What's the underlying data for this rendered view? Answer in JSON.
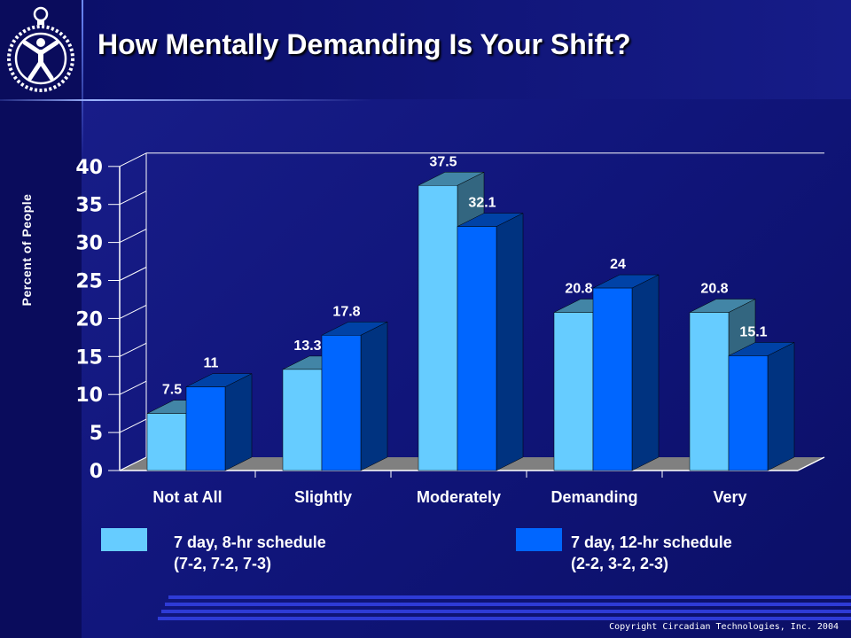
{
  "slide": {
    "title": "How Mentally Demanding Is Your Shift?",
    "copyright": "Copyright Circadian Technologies, Inc. 2004"
  },
  "legend": {
    "series1_line1": "7 day, 8-hr  schedule",
    "series1_line2": "(7-2, 7-2, 7-3)",
    "series2_line1": "7 day, 12-hr schedule",
    "series2_line2": "(2-2, 3-2, 2-3)"
  },
  "colors": {
    "series1": "#66ccff",
    "series2": "#0066ff",
    "floor": "#808080",
    "axis": "#ffffff",
    "text": "#ffffff"
  },
  "chart_data": {
    "type": "bar",
    "title": "How Mentally Demanding Is Your Shift?",
    "ylabel": "Percent of  People",
    "xlabel": "",
    "categories": [
      "Not at All",
      "Slightly",
      "Moderately",
      "Demanding",
      "Very"
    ],
    "series": [
      {
        "name": "7 day, 8-hr  schedule (7-2, 7-2, 7-3)",
        "values": [
          7.5,
          13.3,
          37.5,
          20.8,
          20.8
        ]
      },
      {
        "name": "7 day, 12-hr schedule (2-2, 3-2, 2-3)",
        "values": [
          11,
          17.8,
          32.1,
          24,
          15.1
        ]
      }
    ],
    "value_labels": [
      [
        "7.5",
        "13.3",
        "37.5",
        "20.8",
        "20.8"
      ],
      [
        "11",
        "17.8",
        "32.1",
        "24",
        "15.1"
      ]
    ],
    "yticks": [
      "0",
      "5",
      "10",
      "15",
      "20",
      "25",
      "30",
      "35",
      "40"
    ],
    "ylim": [
      0,
      40
    ],
    "grid": false,
    "style": "3d",
    "legend_position": "bottom"
  }
}
